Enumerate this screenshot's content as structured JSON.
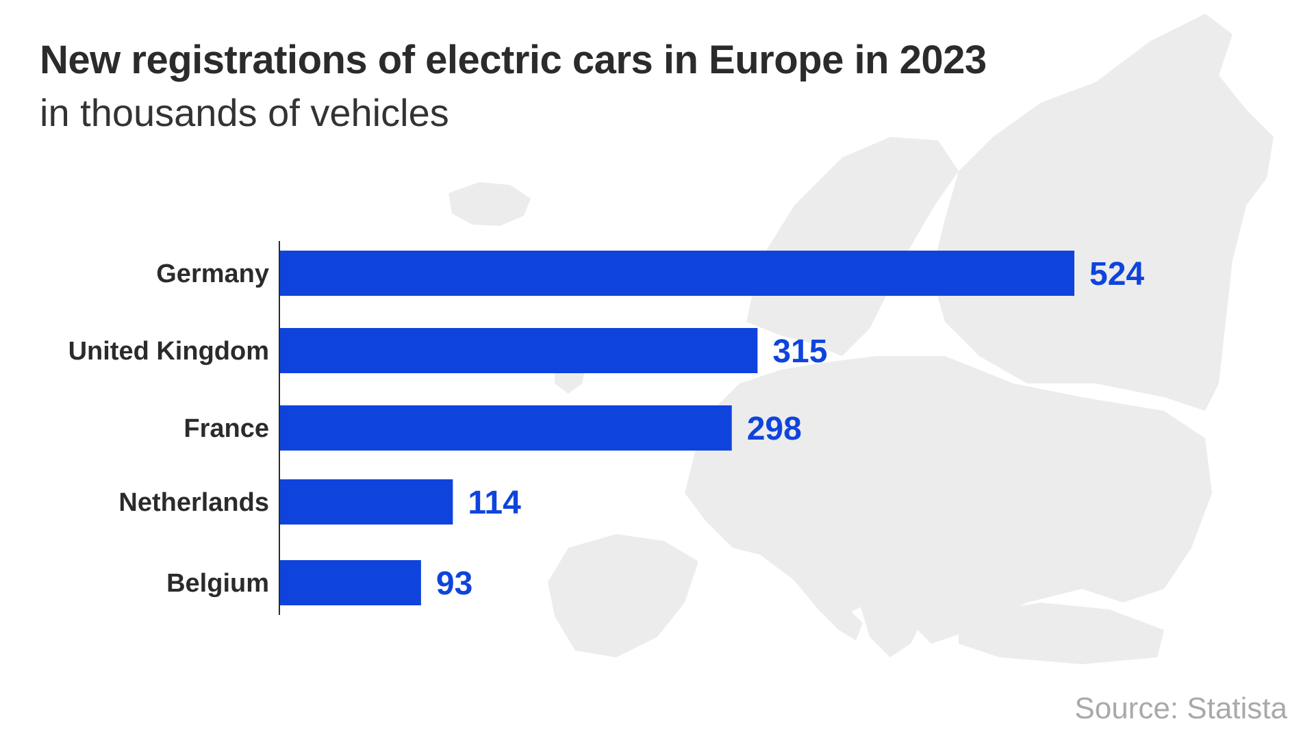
{
  "title": "New registrations of electric cars in Europe in 2023",
  "subtitle": "in thousands of vehicles",
  "source": "Source: Statista",
  "colors": {
    "bar": "#0f44dc",
    "value_text": "#0f44dc",
    "map": "#ececec",
    "text": "#2b2b2b"
  },
  "chart_data": {
    "type": "bar",
    "orientation": "horizontal",
    "title": "New registrations of electric cars in Europe in 2023",
    "subtitle": "in thousands of vehicles",
    "categories": [
      "Germany",
      "United Kingdom",
      "France",
      "Netherlands",
      "Belgium"
    ],
    "values": [
      524,
      315,
      298,
      114,
      93
    ],
    "xlim": [
      0,
      524
    ],
    "grid": false,
    "legend": "none",
    "data_labels": true
  }
}
